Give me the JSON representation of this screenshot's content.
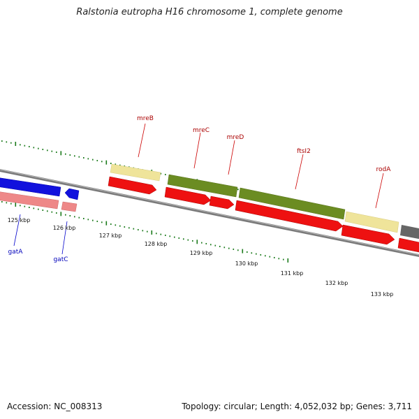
{
  "title": "Ralstonia eutropha H16 chromosome 1, complete genome",
  "footer": {
    "accession": "Accession: NC_008313",
    "stats": "Topology: circular; Length: 4,052,032 bp; Genes: 3,711"
  },
  "colors": {
    "forward_label": "#aa0000",
    "reverse_label": "#0000bb",
    "tick": "#1a7a1a",
    "backbone": "#888888",
    "cds": "#ee1111",
    "cds_reverse": "#1111dd",
    "gene_reverse": "#ee8888",
    "gene_olive": "#6b8c22",
    "gene_pale": "#efe49a",
    "gene_gray": "#666666"
  },
  "ticks": [
    {
      "label": "125 kbp"
    },
    {
      "label": "126 kbp"
    },
    {
      "label": "127 kbp"
    },
    {
      "label": "128 kbp"
    },
    {
      "label": "129 kbp"
    },
    {
      "label": "130 kbp"
    },
    {
      "label": "131 kbp"
    },
    {
      "label": "132 kbp"
    },
    {
      "label": "133 kbp"
    }
  ],
  "gene_labels": [
    {
      "name": "mreB",
      "strand": "forward"
    },
    {
      "name": "mreC",
      "strand": "forward"
    },
    {
      "name": "mreD",
      "strand": "forward"
    },
    {
      "name": "ftsI2",
      "strand": "forward"
    },
    {
      "name": "rodA",
      "strand": "forward"
    },
    {
      "name": "gatA",
      "strand": "reverse"
    },
    {
      "name": "gatC",
      "strand": "reverse"
    }
  ]
}
